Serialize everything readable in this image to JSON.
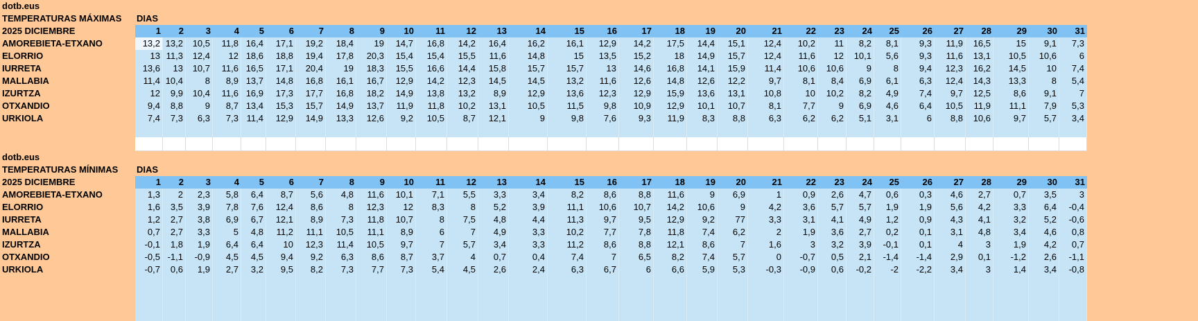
{
  "tables": [
    {
      "source": "dotb.eus",
      "title": "TEMPERATURAS MÁXIMAS",
      "days_label": "DIAS",
      "period": "2025 DICIEMBRE",
      "days": [
        1,
        2,
        3,
        4,
        5,
        6,
        7,
        8,
        9,
        10,
        11,
        12,
        13,
        14,
        15,
        16,
        17,
        18,
        19,
        20,
        21,
        22,
        23,
        24,
        25,
        26,
        27,
        28,
        29,
        30,
        31
      ],
      "rows": [
        {
          "station": "AMOREBIETA-ETXANO",
          "values": [
            "13,2",
            "13,2",
            "10,5",
            "11,8",
            "16,4",
            "17,1",
            "19,2",
            "18,4",
            "19",
            "14,7",
            "16,8",
            "14,2",
            "16,4",
            "16,2",
            "16,1",
            "12,9",
            "14,2",
            "17,5",
            "14,4",
            "15,1",
            "12,4",
            "10,2",
            "11",
            "8,2",
            "8,1",
            "9,3",
            "11,9",
            "16,5",
            "15",
            "9,1",
            "7,3"
          ]
        },
        {
          "station": "ELORRIO",
          "values": [
            "13",
            "11,3",
            "12,4",
            "12",
            "18,6",
            "18,8",
            "19,4",
            "17,8",
            "20,3",
            "15,4",
            "15,4",
            "15,5",
            "11,6",
            "14,8",
            "15",
            "13,5",
            "15,2",
            "18",
            "14,9",
            "15,7",
            "12,4",
            "11,6",
            "12",
            "10,1",
            "5,6",
            "9,3",
            "11,6",
            "13,1",
            "10,5",
            "10,6",
            "6"
          ]
        },
        {
          "station": "IURRETA",
          "values": [
            "13,6",
            "13",
            "10,7",
            "11,6",
            "16,5",
            "17,1",
            "20,4",
            "19",
            "18,3",
            "15,5",
            "16,6",
            "14,4",
            "15,8",
            "15,7",
            "15,7",
            "13",
            "14,6",
            "16,8",
            "14,1",
            "15,9",
            "11,4",
            "10,6",
            "10,6",
            "9",
            "8",
            "9,4",
            "12,3",
            "16,2",
            "14,5",
            "10",
            "7,4"
          ]
        },
        {
          "station": "MALLABIA",
          "values": [
            "11,4",
            "10,4",
            "8",
            "8,9",
            "13,7",
            "14,8",
            "16,8",
            "16,1",
            "16,7",
            "12,9",
            "14,2",
            "12,3",
            "14,5",
            "14,5",
            "13,2",
            "11,6",
            "12,6",
            "14,8",
            "12,6",
            "12,2",
            "9,7",
            "8,1",
            "8,4",
            "6,9",
            "6,1",
            "6,3",
            "12,4",
            "14,3",
            "13,3",
            "8",
            "5,4"
          ]
        },
        {
          "station": "IZURTZA",
          "values": [
            "12",
            "9,9",
            "10,4",
            "11,6",
            "16,9",
            "17,3",
            "17,7",
            "16,8",
            "18,2",
            "14,9",
            "13,8",
            "13,2",
            "8,9",
            "12,9",
            "13,6",
            "12,3",
            "12,9",
            "15,9",
            "13,6",
            "13,1",
            "10,8",
            "10",
            "10,2",
            "8,2",
            "4,9",
            "7,4",
            "9,7",
            "12,5",
            "8,6",
            "9,1",
            "7"
          ]
        },
        {
          "station": "OTXANDIO",
          "values": [
            "9,4",
            "8,8",
            "9",
            "8,7",
            "13,4",
            "15,3",
            "15,7",
            "14,9",
            "13,7",
            "11,9",
            "11,8",
            "10,2",
            "13,1",
            "10,5",
            "11,5",
            "9,8",
            "10,9",
            "12,9",
            "10,1",
            "10,7",
            "8,1",
            "7,7",
            "9",
            "6,9",
            "4,6",
            "6,4",
            "10,5",
            "11,9",
            "11,1",
            "7,9",
            "5,3"
          ]
        },
        {
          "station": "URKIOLA",
          "values": [
            "7,4",
            "7,3",
            "6,3",
            "7,3",
            "11,4",
            "12,9",
            "14,9",
            "13,3",
            "12,6",
            "9,2",
            "10,5",
            "8,7",
            "12,1",
            "9",
            "9,8",
            "7,6",
            "9,3",
            "11,9",
            "8,3",
            "8,8",
            "6,3",
            "6,2",
            "6,2",
            "5,1",
            "3,1",
            "6",
            "8,8",
            "10,6",
            "9,7",
            "5,7",
            "3,4"
          ]
        }
      ]
    },
    {
      "source": "dotb.eus",
      "title": "TEMPERATURAS MÍNIMAS",
      "days_label": "DIAS",
      "period": "2025 DICIEMBRE",
      "days": [
        1,
        2,
        3,
        4,
        5,
        6,
        7,
        8,
        9,
        10,
        11,
        12,
        13,
        14,
        15,
        16,
        17,
        18,
        19,
        20,
        21,
        22,
        23,
        24,
        25,
        26,
        27,
        28,
        29,
        30,
        31
      ],
      "rows": [
        {
          "station": "AMOREBIETA-ETXANO",
          "values": [
            "1,3",
            "2",
            "2,3",
            "5,8",
            "6,4",
            "8,7",
            "5,6",
            "4,8",
            "11,6",
            "10,1",
            "7,1",
            "5,5",
            "3,3",
            "3,4",
            "8,2",
            "8,6",
            "8,8",
            "11,6",
            "9",
            "6,9",
            "1",
            "0,9",
            "2,6",
            "4,7",
            "0,6",
            "0,3",
            "4,6",
            "2,7",
            "0,7",
            "3,5",
            "3"
          ]
        },
        {
          "station": "ELORRIO",
          "values": [
            "1,6",
            "3,5",
            "3,9",
            "7,8",
            "7,6",
            "12,4",
            "8,6",
            "8",
            "12,3",
            "12",
            "8,3",
            "8",
            "5,2",
            "3,9",
            "11,1",
            "10,6",
            "10,7",
            "14,2",
            "10,6",
            "9",
            "4,2",
            "3,6",
            "5,7",
            "5,7",
            "1,9",
            "1,9",
            "5,6",
            "4,2",
            "3,3",
            "6,4",
            "-0,4"
          ]
        },
        {
          "station": "IURRETA",
          "values": [
            "1,2",
            "2,7",
            "3,8",
            "6,9",
            "6,7",
            "12,1",
            "8,9",
            "7,3",
            "11,8",
            "10,7",
            "8",
            "7,5",
            "4,8",
            "4,4",
            "11,3",
            "9,7",
            "9,5",
            "12,9",
            "9,2",
            "77",
            "3,3",
            "3,1",
            "4,1",
            "4,9",
            "1,2",
            "0,9",
            "4,3",
            "4,1",
            "3,2",
            "5,2",
            "-0,6"
          ]
        },
        {
          "station": "MALLABIA",
          "values": [
            "0,7",
            "2,7",
            "3,3",
            "5",
            "4,8",
            "11,2",
            "11,1",
            "10,5",
            "11,1",
            "8,9",
            "6",
            "7",
            "4,9",
            "3,3",
            "10,2",
            "7,7",
            "7,8",
            "11,8",
            "7,4",
            "6,2",
            "2",
            "1,9",
            "3,6",
            "2,7",
            "0,2",
            "0,1",
            "3,1",
            "4,8",
            "3,4",
            "4,6",
            "0,8"
          ]
        },
        {
          "station": "IZURTZA",
          "values": [
            "-0,1",
            "1,8",
            "1,9",
            "6,4",
            "6,4",
            "10",
            "12,3",
            "11,4",
            "10,5",
            "9,7",
            "7",
            "5,7",
            "3,4",
            "3,3",
            "11,2",
            "8,6",
            "8,8",
            "12,1",
            "8,6",
            "7",
            "1,6",
            "3",
            "3,2",
            "3,9",
            "-0,1",
            "0,1",
            "4",
            "3",
            "1,9",
            "4,2",
            "0,7"
          ]
        },
        {
          "station": "OTXANDIO",
          "values": [
            "-0,5",
            "-1,1",
            "-0,9",
            "4,5",
            "4,5",
            "9,4",
            "9,2",
            "6,3",
            "8,6",
            "8,7",
            "3,7",
            "4",
            "0,7",
            "0,4",
            "7,4",
            "7",
            "6,5",
            "8,2",
            "7,4",
            "5,7",
            "0",
            "-0,7",
            "0,5",
            "2,1",
            "-1,4",
            "-1,4",
            "2,9",
            "0,1",
            "-1,2",
            "2,6",
            "-1,1"
          ]
        },
        {
          "station": "URKIOLA",
          "values": [
            "-0,7",
            "0,6",
            "1,9",
            "2,7",
            "3,2",
            "9,5",
            "8,2",
            "7,3",
            "7,7",
            "7,3",
            "5,4",
            "4,5",
            "2,6",
            "2,4",
            "6,3",
            "6,7",
            "6",
            "6,6",
            "5,9",
            "5,3",
            "-0,3",
            "-0,9",
            "0,6",
            "-0,2",
            "-2",
            "-2,2",
            "3,4",
            "3",
            "1,4",
            "3,4",
            "-0,8"
          ]
        }
      ]
    }
  ]
}
